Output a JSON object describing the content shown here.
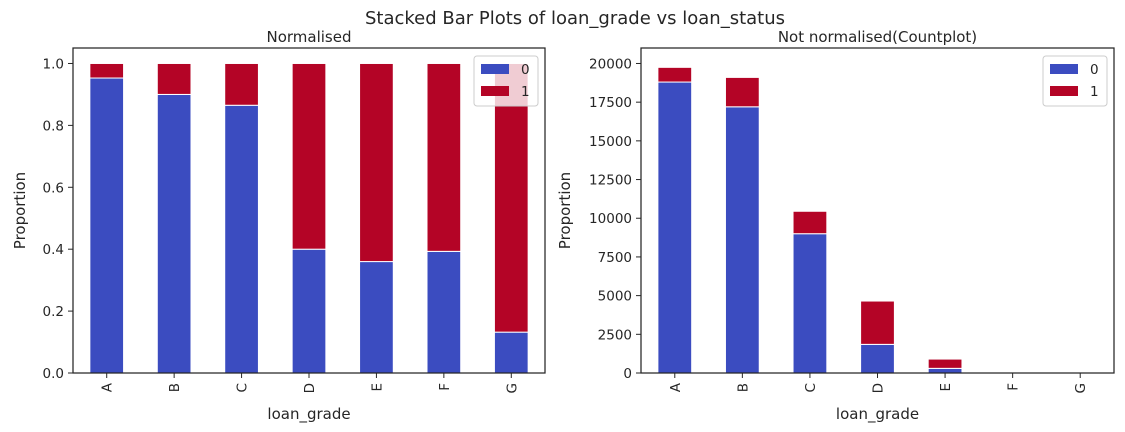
{
  "suptitle": "Stacked Bar Plots of loan_grade vs loan_status",
  "chart_data": [
    {
      "type": "bar",
      "stacked": true,
      "title": "Normalised",
      "xlabel": "loan_grade",
      "ylabel": "Proportion",
      "categories": [
        "A",
        "B",
        "C",
        "D",
        "E",
        "F",
        "G"
      ],
      "ylim": [
        0,
        1.05
      ],
      "yticks": [
        "0.0",
        "0.2",
        "0.4",
        "0.6",
        "0.8",
        "1.0"
      ],
      "legend_position": "top-right",
      "series": [
        {
          "name": "0",
          "color": "#3b4cc0",
          "values": [
            0.953,
            0.9,
            0.865,
            0.4,
            0.36,
            0.393,
            0.132
          ]
        },
        {
          "name": "1",
          "color": "#b40426",
          "values": [
            0.047,
            0.1,
            0.135,
            0.6,
            0.64,
            0.607,
            0.868
          ]
        }
      ]
    },
    {
      "type": "bar",
      "stacked": true,
      "title": "Not normalised(Countplot)",
      "xlabel": "loan_grade",
      "ylabel": "Proportion",
      "categories": [
        "A",
        "B",
        "C",
        "D",
        "E",
        "F",
        "G"
      ],
      "ylim": [
        0,
        21000
      ],
      "yticks": [
        "0",
        "2500",
        "5000",
        "7500",
        "10000",
        "12500",
        "15000",
        "17500",
        "20000"
      ],
      "legend_position": "top-right",
      "series": [
        {
          "name": "0",
          "color": "#3b4cc0",
          "values": [
            18800,
            17200,
            9000,
            1850,
            300,
            40,
            5
          ]
        },
        {
          "name": "1",
          "color": "#b40426",
          "values": [
            950,
            1900,
            1450,
            2800,
            600,
            60,
            35
          ]
        }
      ]
    }
  ]
}
